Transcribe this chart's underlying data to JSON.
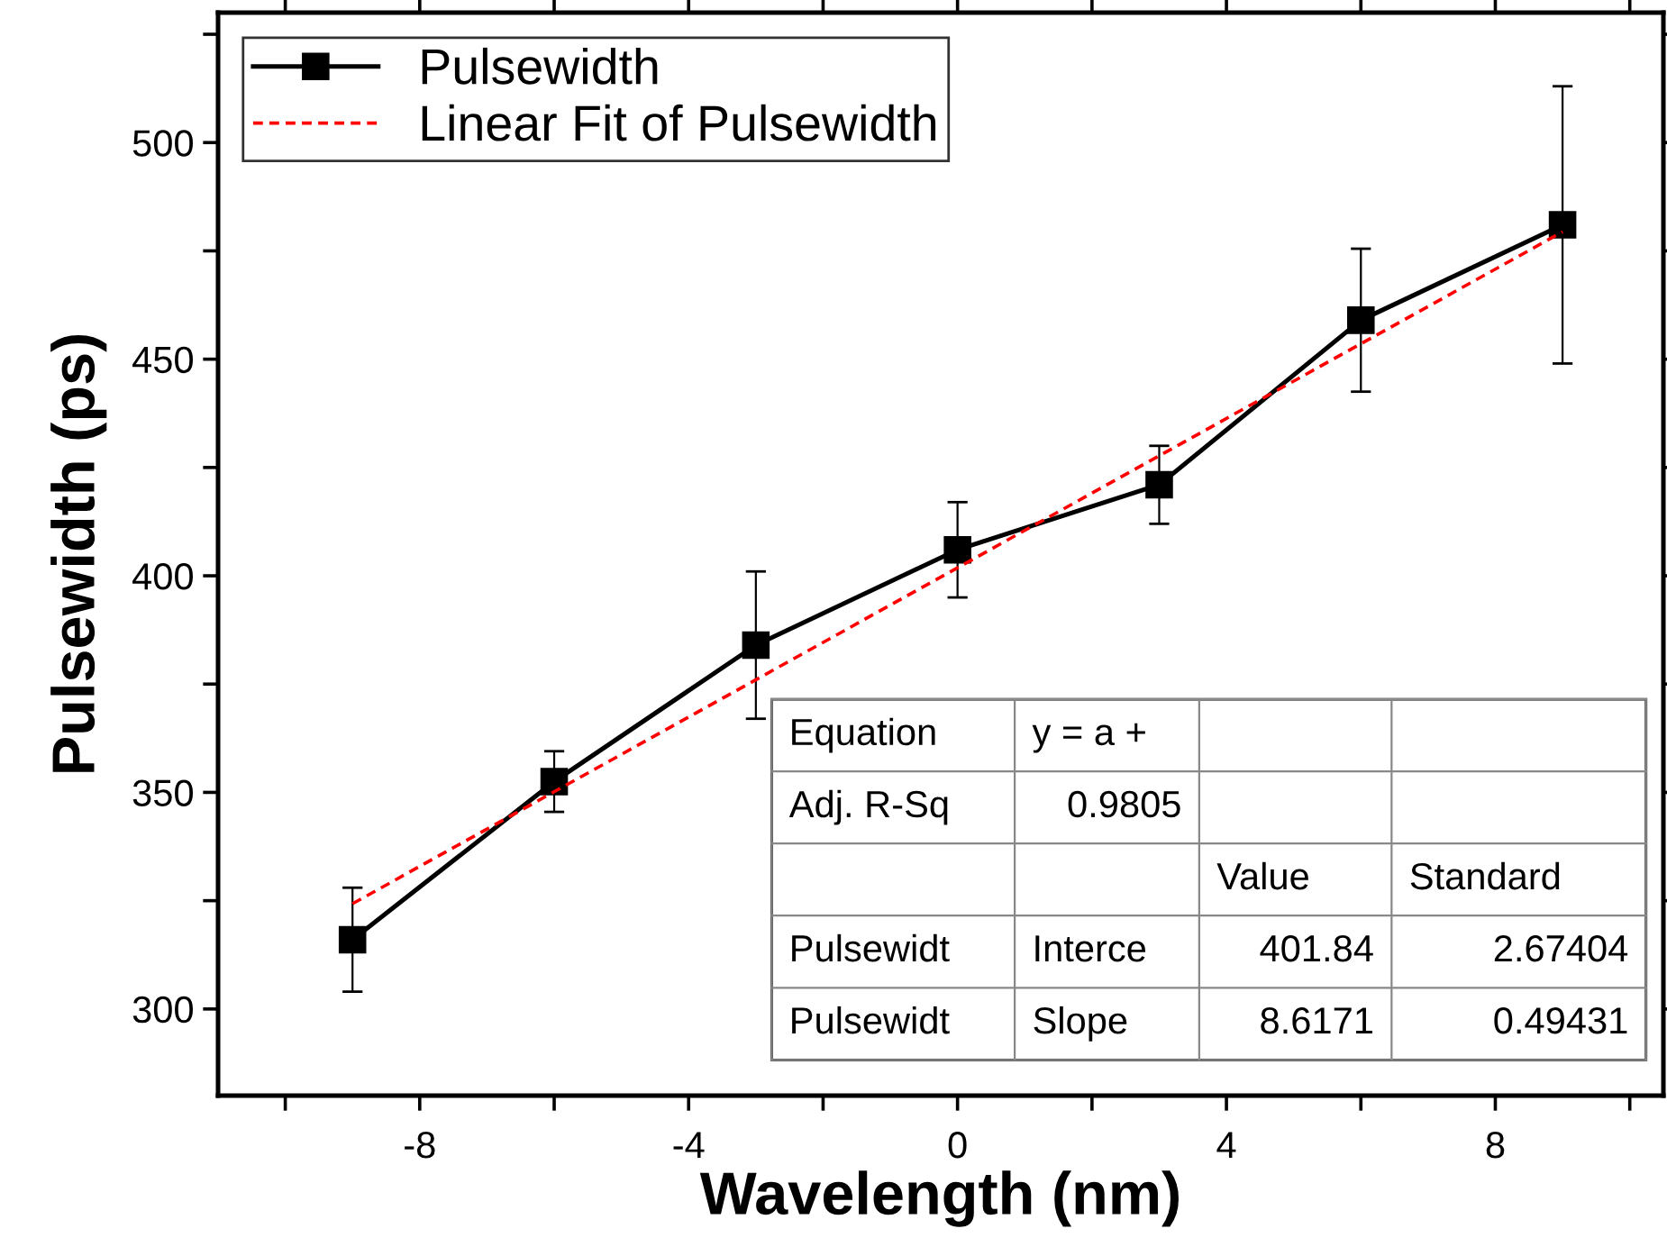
{
  "chart_data": {
    "type": "line",
    "xlabel": "Wavelength (nm)",
    "ylabel": "Pulsewidth (ps)",
    "xlim": [
      -11,
      10.5
    ],
    "ylim": [
      280,
      530
    ],
    "xticks": [
      {
        "value": -10,
        "label": null
      },
      -8,
      {
        "value": -6,
        "label": null
      },
      -4,
      {
        "value": -2,
        "label": null
      },
      0,
      {
        "value": 2,
        "label": null
      },
      4,
      {
        "value": 6,
        "label": null
      },
      8,
      {
        "value": 10,
        "label": null
      }
    ],
    "yticks": [
      300,
      {
        "value": 325,
        "label": null
      },
      350,
      {
        "value": 375,
        "label": null
      },
      400,
      {
        "value": 425,
        "label": null
      },
      450,
      {
        "value": 475,
        "label": null
      },
      500,
      {
        "value": 525,
        "label": null
      }
    ],
    "grid": false,
    "legend": "top left",
    "series": [
      {
        "name": "Pulsewidth",
        "color": "#000000",
        "marker": "square",
        "line_style": "solid",
        "x": [
          -9,
          -6,
          -3,
          0,
          3,
          6,
          9
        ],
        "values": [
          316,
          352.5,
          384,
          406,
          421,
          459,
          481
        ],
        "errors": [
          12,
          7,
          17,
          11,
          9,
          16.5,
          32
        ]
      },
      {
        "name": "Linear Fit of Pulsewidth",
        "color": "#ff0000",
        "marker": "none",
        "line_style": "dashed",
        "x": [
          -9,
          9
        ],
        "values": [
          324.3,
          479.4
        ]
      }
    ],
    "annotations": [
      "Equation",
      "y = a +",
      "Adj. R-Sq",
      "0.9805",
      "Value",
      "Standard",
      "Pulsewidt",
      "Interce",
      "401.84",
      "2.67404",
      "Pulsewidt",
      "Slope",
      "8.6171",
      "0.49431"
    ]
  }
}
